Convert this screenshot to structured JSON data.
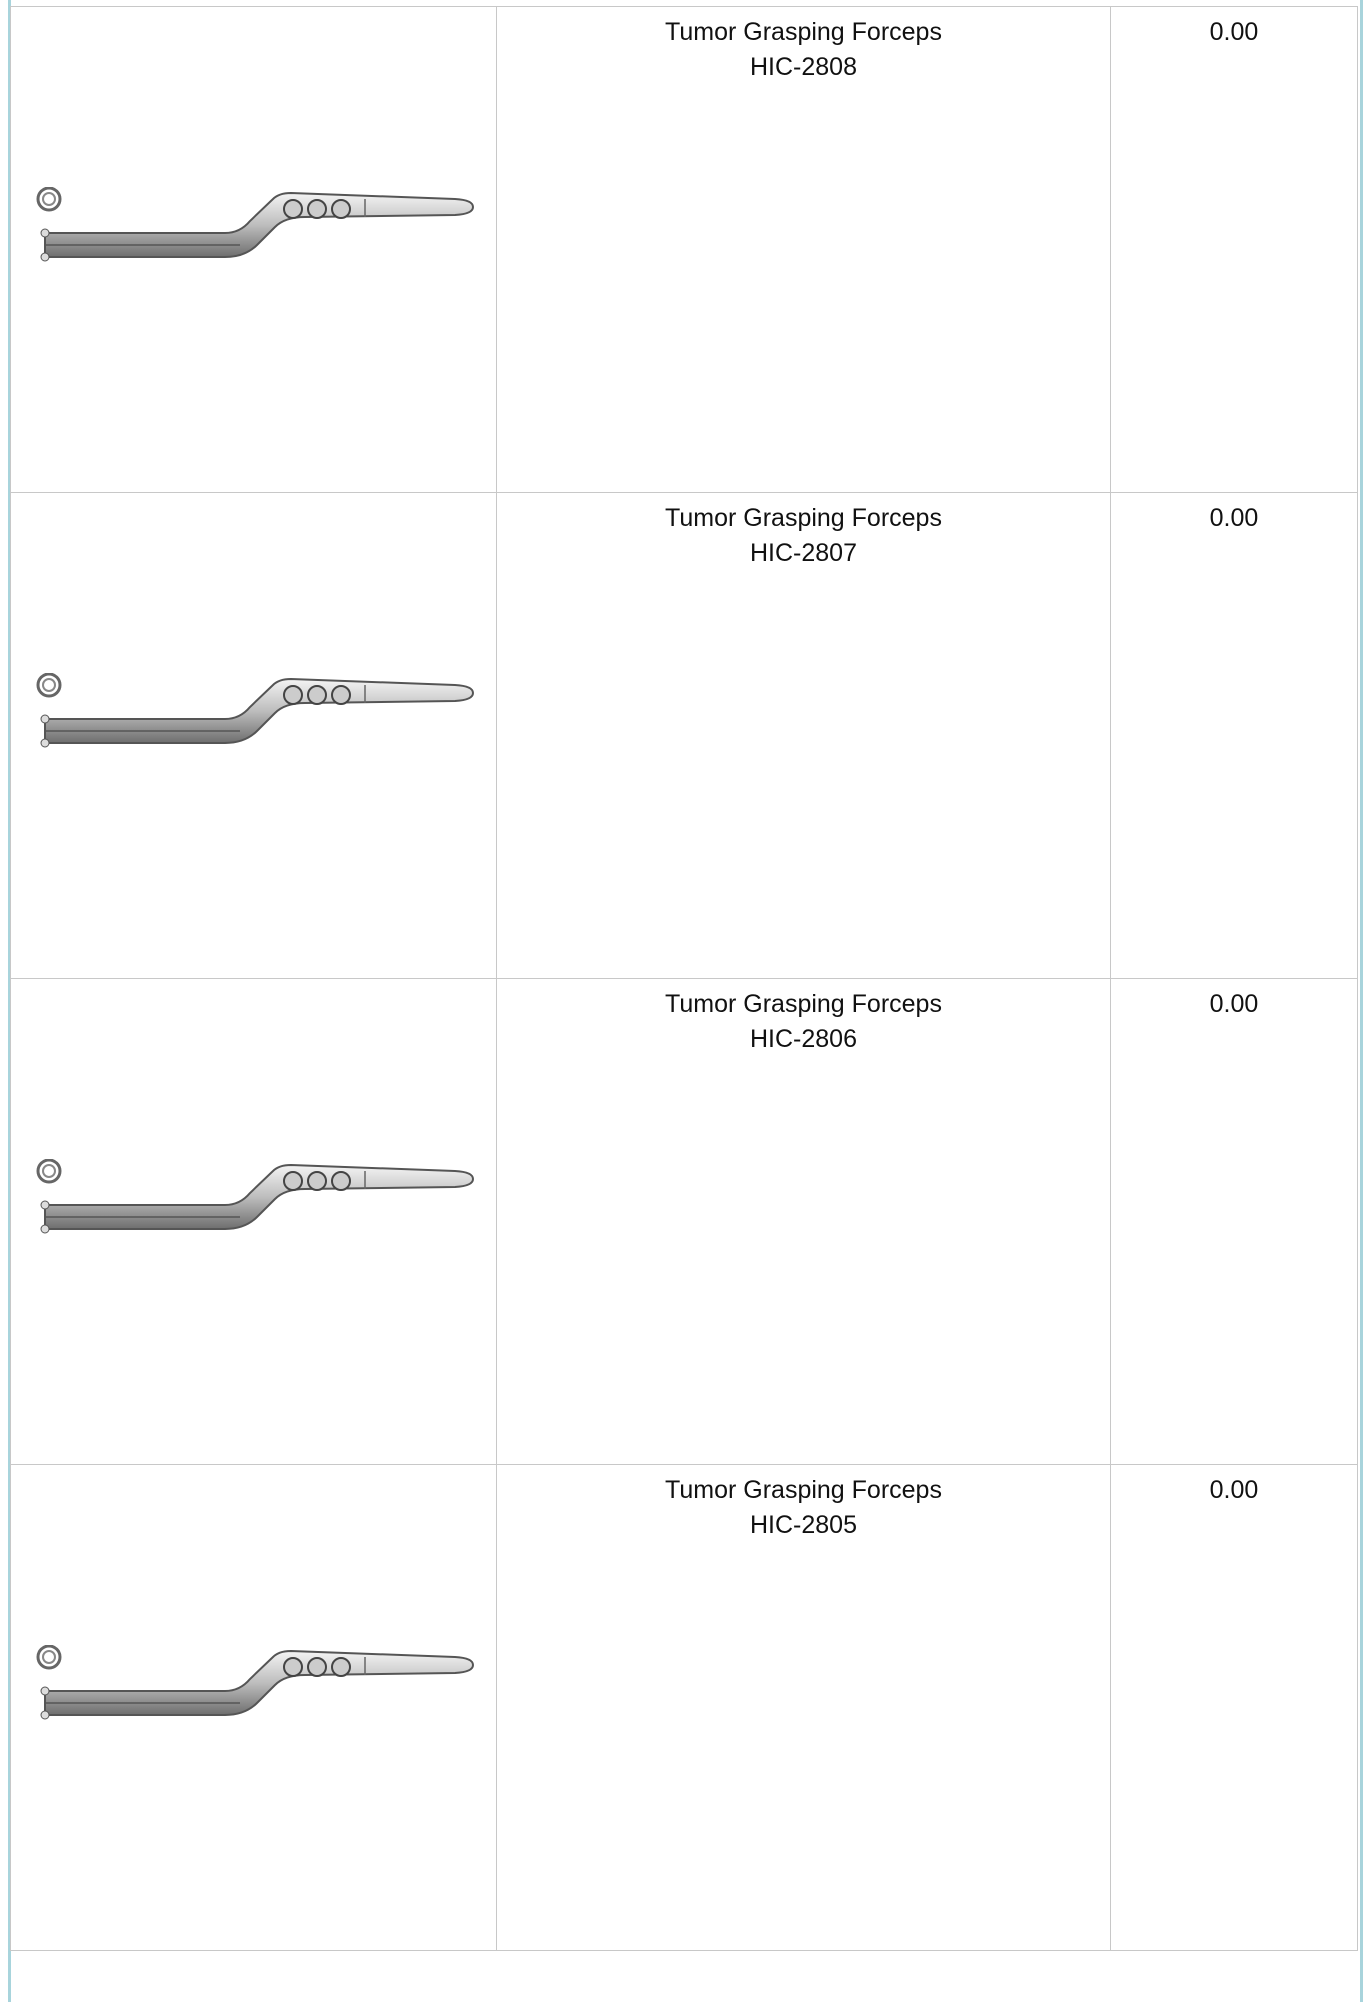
{
  "table": {
    "rows": [
      {
        "name": "Tumor Grasping Forceps",
        "code": "HIC-2808",
        "price": "0.00"
      },
      {
        "name": "Tumor Grasping Forceps",
        "code": "HIC-2807",
        "price": "0.00"
      },
      {
        "name": "Tumor Grasping Forceps",
        "code": "HIC-2806",
        "price": "0.00"
      },
      {
        "name": "Tumor Grasping Forceps",
        "code": "HIC-2805",
        "price": "0.00"
      }
    ]
  }
}
